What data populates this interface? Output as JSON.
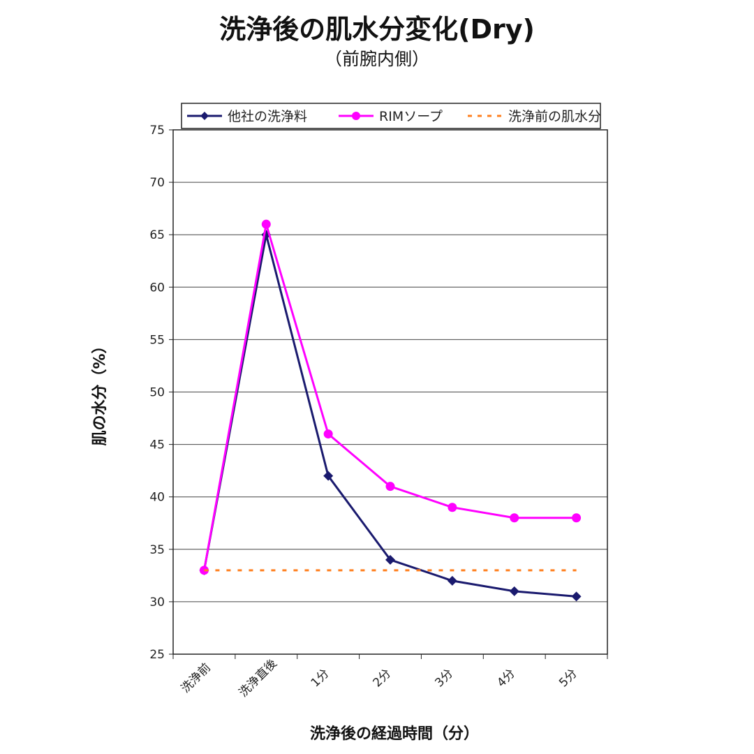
{
  "chart_data": {
    "type": "line",
    "title": "洗浄後の肌水分変化(Dry)",
    "subtitle": "（前腕内側）",
    "xlabel": "洗浄後の経過時間（分）",
    "ylabel": "肌の水分（%）",
    "ylim": [
      25,
      75
    ],
    "yticks": [
      25,
      30,
      35,
      40,
      45,
      50,
      55,
      60,
      65,
      70,
      75
    ],
    "grid": true,
    "legend_position": "top",
    "categories": [
      "洗浄前",
      "洗浄直後",
      "1分",
      "2分",
      "3分",
      "4分",
      "5分"
    ],
    "series": [
      {
        "name": "他社の洗浄料",
        "color": "#1a1a6e",
        "marker": "diamond",
        "style": "solid",
        "values": [
          33,
          65,
          42,
          34,
          32,
          31,
          30.5
        ]
      },
      {
        "name": "RIMソープ",
        "color": "#ff00ff",
        "marker": "circle",
        "style": "solid",
        "values": [
          33,
          66,
          46,
          41,
          39,
          38,
          38
        ]
      },
      {
        "name": "洗浄前の肌水分",
        "color": "#ff7f1e",
        "marker": "none",
        "style": "dotted",
        "values": [
          33,
          33,
          33,
          33,
          33,
          33,
          33
        ]
      }
    ]
  }
}
